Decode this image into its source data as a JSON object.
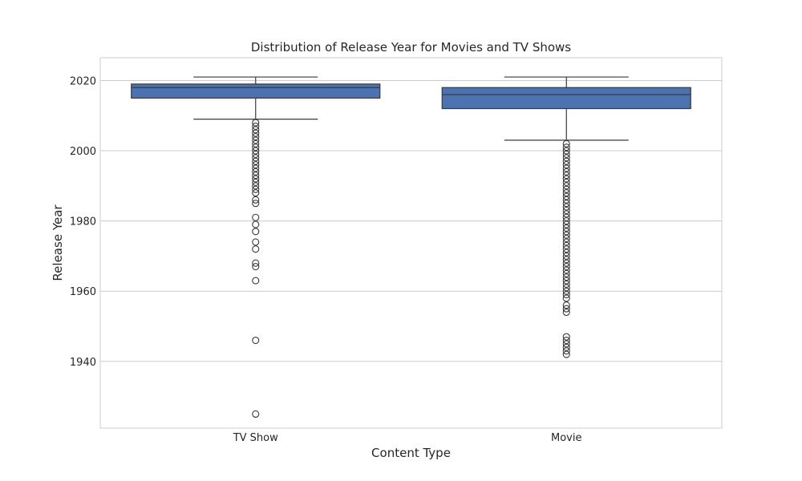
{
  "chart_data": {
    "type": "box",
    "title": "Distribution of Release Year for Movies and TV Shows",
    "xlabel": "Content Type",
    "ylabel": "Release Year",
    "ylim": [
      1921,
      2026.5
    ],
    "yticks": [
      1940,
      1960,
      1980,
      2000,
      2020
    ],
    "grid": true,
    "box_color": "#4c72b0",
    "categories": [
      "TV Show",
      "Movie"
    ],
    "boxes": [
      {
        "category": "TV Show",
        "whisker_low": 2009,
        "q1": 2015,
        "median": 2018,
        "q3": 2019,
        "whisker_high": 2021,
        "outliers": [
          2008,
          2007,
          2006,
          2005,
          2004,
          2003,
          2002,
          2001,
          2000,
          1999,
          1998,
          1997,
          1996,
          1995,
          1994,
          1993,
          1992,
          1991,
          1990,
          1989,
          1988,
          1986,
          1985,
          1981,
          1979,
          1977,
          1974,
          1972,
          1968,
          1967,
          1963,
          1946,
          1925
        ]
      },
      {
        "category": "Movie",
        "whisker_low": 2003,
        "q1": 2012,
        "median": 2016,
        "q3": 2018,
        "whisker_high": 2021,
        "outliers": [
          2002,
          2001,
          2000,
          1999,
          1998,
          1997,
          1996,
          1995,
          1994,
          1993,
          1992,
          1991,
          1990,
          1989,
          1988,
          1987,
          1986,
          1985,
          1984,
          1983,
          1982,
          1981,
          1980,
          1979,
          1978,
          1977,
          1976,
          1975,
          1974,
          1973,
          1972,
          1971,
          1970,
          1969,
          1968,
          1967,
          1966,
          1965,
          1964,
          1963,
          1962,
          1961,
          1960,
          1959,
          1958,
          1956,
          1955,
          1954,
          1947,
          1946,
          1945,
          1944,
          1943,
          1942
        ]
      }
    ]
  }
}
